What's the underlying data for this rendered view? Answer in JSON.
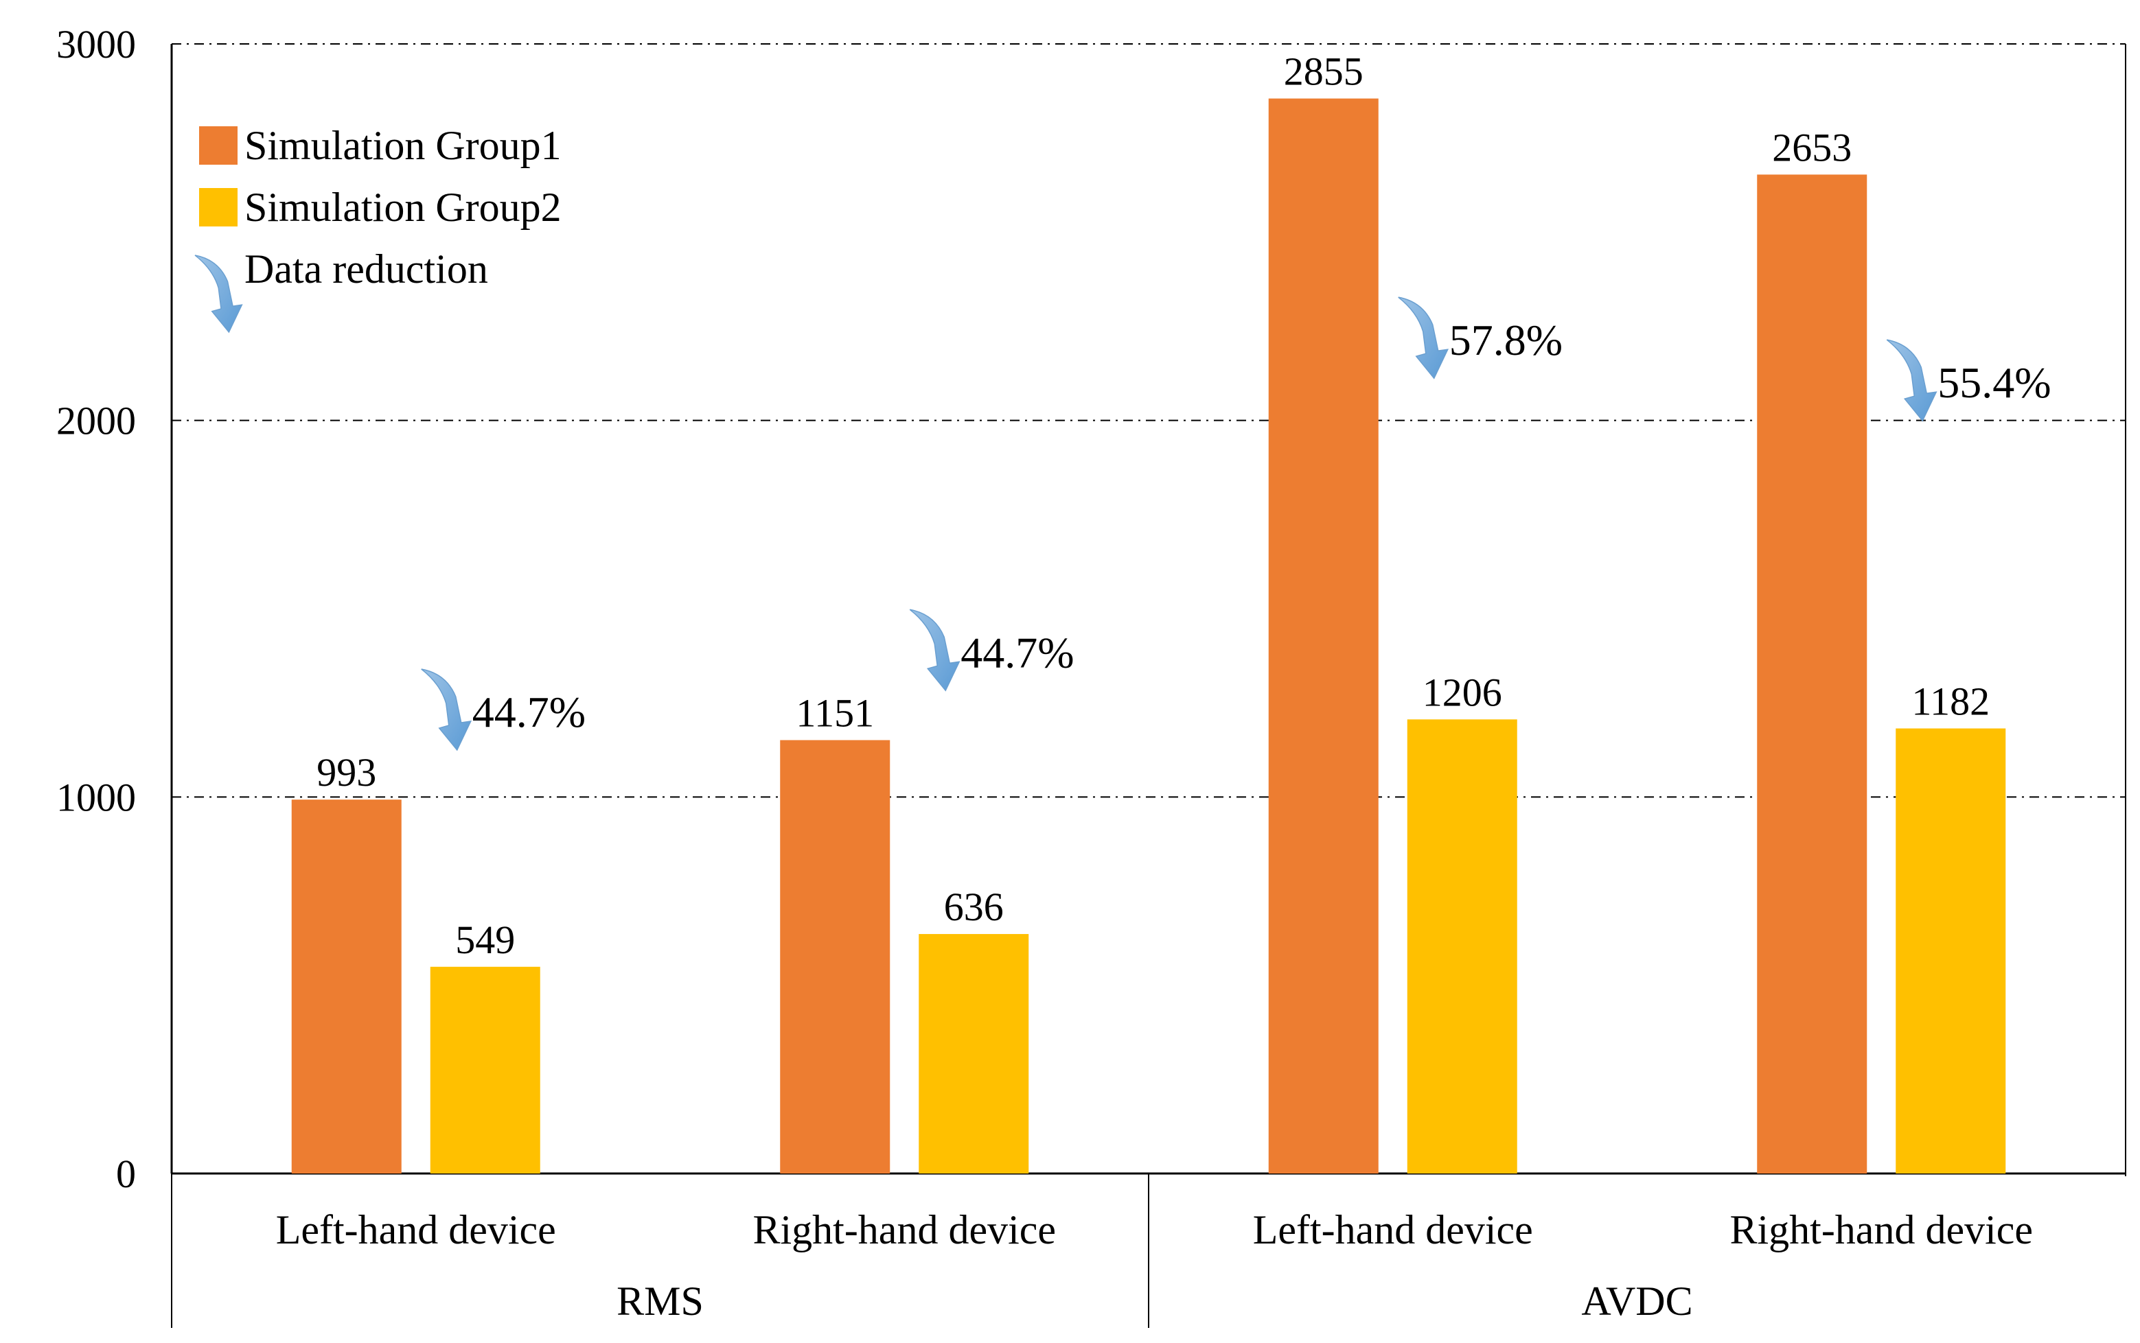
{
  "chart_data": {
    "type": "bar",
    "title": "",
    "xlabel": "",
    "ylabel": "",
    "ylim": [
      0,
      3000
    ],
    "yticks": [
      0,
      1000,
      2000,
      3000
    ],
    "grid": "dash-dot horizontal at 1000, 2000, 3000",
    "groups": [
      {
        "name": "RMS",
        "categories": [
          "Left-hand device",
          "Right-hand device"
        ]
      },
      {
        "name": "AVDC",
        "categories": [
          "Left-hand device",
          "Right-hand device"
        ]
      }
    ],
    "categories": [
      "Left-hand device",
      "Right-hand device",
      "Left-hand device",
      "Right-hand device"
    ],
    "series": [
      {
        "name": "Simulation Group1",
        "color": "#ED7D31",
        "values": [
          993,
          1151,
          2855,
          2653
        ]
      },
      {
        "name": "Simulation Group2",
        "color": "#FFC000",
        "values": [
          549,
          636,
          1206,
          1182
        ]
      }
    ],
    "reductions": [
      {
        "label": "44.7%",
        "value": 44.7
      },
      {
        "label": "44.7%",
        "value": 44.7
      },
      {
        "label": "57.8%",
        "value": 57.8
      },
      {
        "label": "55.4%",
        "value": 55.4
      }
    ],
    "legend": {
      "placement": "top-left",
      "items": [
        {
          "label": "Simulation Group1",
          "kind": "bar",
          "color": "#ED7D31"
        },
        {
          "label": "Simulation Group2",
          "kind": "bar",
          "color": "#FFC000"
        },
        {
          "label": "Data reduction",
          "kind": "arrow",
          "color": "#7FAEDB"
        }
      ]
    }
  }
}
